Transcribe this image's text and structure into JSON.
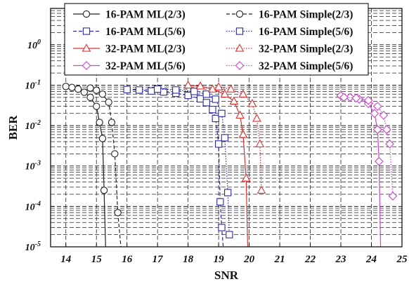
{
  "chart_data": {
    "type": "line",
    "xlabel": "SNR",
    "ylabel": "BER",
    "xlim": [
      13.5,
      25
    ],
    "ylim_log10": [
      -5,
      0.9
    ],
    "y_scale": "log",
    "grid": "dashed, major and minor",
    "legend_position": "top, two columns",
    "x_ticks": [
      "14",
      "15",
      "16",
      "17",
      "18",
      "19",
      "20",
      "21",
      "22",
      "23",
      "24",
      "25"
    ],
    "y_ticks": [
      {
        "base": "10",
        "exp": "0",
        "value": 1
      },
      {
        "base": "10",
        "exp": "-1",
        "value": 0.1
      },
      {
        "base": "10",
        "exp": "-2",
        "value": 0.01
      },
      {
        "base": "10",
        "exp": "-3",
        "value": 0.001
      },
      {
        "base": "10",
        "exp": "-4",
        "value": 0.0001
      },
      {
        "base": "10",
        "exp": "-5",
        "value": 1e-05
      }
    ],
    "series": [
      {
        "name": "16-PAM ML(2/3)",
        "color": "#222222",
        "marker": "circle",
        "dash": "solid",
        "x": [
          14.0,
          14.2,
          14.4,
          14.6,
          14.8,
          15.0,
          15.1,
          15.2,
          15.25,
          15.3
        ],
        "y": [
          0.093,
          0.088,
          0.08,
          0.067,
          0.05,
          0.03,
          0.012,
          0.0048,
          0.00025,
          1e-05
        ]
      },
      {
        "name": "16-PAM Simple(2/3)",
        "color": "#222222",
        "marker": "circle",
        "dash": "dashed",
        "x": [
          14.8,
          15.0,
          15.2,
          15.4,
          15.5,
          15.6,
          15.7,
          15.8
        ],
        "y": [
          0.085,
          0.075,
          0.06,
          0.038,
          0.012,
          0.002,
          7e-05,
          1e-05
        ]
      },
      {
        "name": "16-PAM ML(5/6)",
        "color": "#2a2aa8",
        "marker": "square",
        "dash": "dashed",
        "x": [
          16.0,
          16.4,
          16.8,
          17.2,
          17.6,
          18.0,
          18.4,
          18.6,
          18.8,
          18.9,
          19.0,
          19.05,
          19.1,
          19.15
        ],
        "y": [
          0.078,
          0.076,
          0.072,
          0.068,
          0.063,
          0.056,
          0.046,
          0.037,
          0.025,
          0.015,
          0.0035,
          0.00013,
          3e-05,
          1e-05
        ]
      },
      {
        "name": "16-PAM Simple(5/6)",
        "color": "#2a2aa8",
        "marker": "square",
        "dash": "dotted",
        "x": [
          17.0,
          17.6,
          18.2,
          18.6,
          18.9,
          19.1,
          19.2,
          19.3,
          19.35
        ],
        "y": [
          0.08,
          0.076,
          0.07,
          0.06,
          0.045,
          0.02,
          0.005,
          0.00022,
          2e-05
        ]
      },
      {
        "name": "32-PAM ML(2/3)",
        "color": "#e03030",
        "marker": "triangle",
        "dash": "solid",
        "x": [
          18.0,
          18.4,
          18.8,
          19.2,
          19.5,
          19.7,
          19.8,
          19.9,
          19.95,
          20.0
        ],
        "y": [
          0.1,
          0.095,
          0.08,
          0.06,
          0.04,
          0.018,
          0.006,
          0.0005,
          1e-05,
          1e-05
        ]
      },
      {
        "name": "32-PAM Simple(2/3)",
        "color": "#e03030",
        "marker": "triangle",
        "dash": "dotted",
        "x": [
          19.0,
          19.4,
          19.8,
          20.1,
          20.25,
          20.35,
          20.4
        ],
        "y": [
          0.09,
          0.08,
          0.06,
          0.035,
          0.015,
          0.0035,
          0.00025
        ]
      },
      {
        "name": "32-PAM ML(5/6)",
        "color": "#cc44cc",
        "marker": "diamond",
        "dash": "solid",
        "x": [
          23.0,
          23.3,
          23.6,
          23.9,
          24.1,
          24.2,
          24.25,
          24.3
        ],
        "y": [
          0.055,
          0.05,
          0.045,
          0.035,
          0.02,
          0.008,
          0.0013,
          1e-05
        ]
      },
      {
        "name": "32-PAM Simple(5/6)",
        "color": "#cc44cc",
        "marker": "diamond",
        "dash": "dotted",
        "x": [
          23.1,
          23.5,
          23.9,
          24.2,
          24.4,
          24.5,
          24.6,
          24.7
        ],
        "y": [
          0.05,
          0.048,
          0.042,
          0.03,
          0.018,
          0.008,
          0.0035,
          0.00018
        ]
      }
    ]
  }
}
